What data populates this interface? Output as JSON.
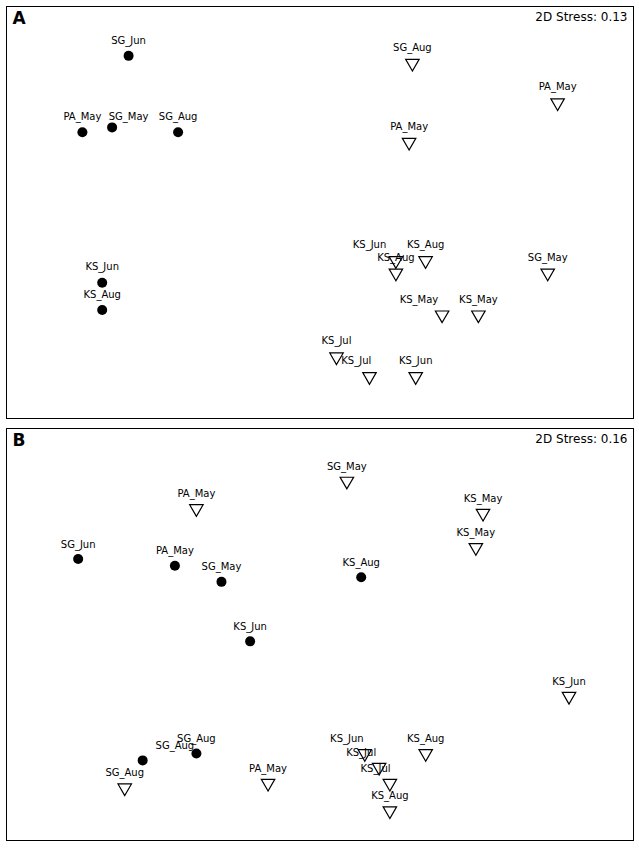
{
  "chart_data": [
    {
      "type": "scatter",
      "title": "A",
      "annotation": "2D Stress: 0.13",
      "xlim": [
        -1.05,
        0.85
      ],
      "ylim": [
        -0.72,
        0.95
      ],
      "tick_labels": false,
      "grid": false,
      "series": [
        {
          "marker": "circle",
          "color": "#000000",
          "x": [
            -0.68,
            -0.82,
            -0.73,
            -0.53,
            -0.76,
            -0.76
          ],
          "y": [
            0.75,
            0.44,
            0.46,
            0.44,
            -0.17,
            -0.28
          ],
          "labels": [
            "SG_Jun",
            "PA_May",
            "SG_May",
            "SG_Aug",
            "KS_Jun",
            "KS_Aug"
          ],
          "label_x": [
            -0.68,
            -0.82,
            -0.68,
            -0.53,
            -0.76,
            -0.76
          ],
          "label_y": [
            0.8,
            0.49,
            0.49,
            0.49,
            -0.12,
            -0.23
          ]
        },
        {
          "marker": "triangle-down-open",
          "color": "#000000",
          "x": [
            0.18,
            0.62,
            0.17,
            0.13,
            0.22,
            0.13,
            0.59,
            0.27,
            0.38,
            -0.05,
            0.05,
            0.19
          ],
          "y": [
            0.72,
            0.56,
            0.4,
            -0.08,
            -0.08,
            -0.13,
            -0.13,
            -0.3,
            -0.3,
            -0.47,
            -0.55,
            -0.55
          ],
          "labels": [
            "SG_Aug",
            "PA_May",
            "PA_May",
            "KS_Jun",
            "KS_Aug",
            "KS_Aug",
            "SG_May",
            "KS_May",
            "KS_May",
            "KS_Jul",
            "KS_Jul",
            "KS_Jun"
          ],
          "label_x": [
            0.18,
            0.62,
            0.17,
            0.05,
            0.22,
            0.13,
            0.59,
            0.2,
            0.38,
            -0.05,
            0.01,
            0.19
          ],
          "label_y": [
            0.77,
            0.61,
            0.45,
            -0.03,
            -0.03,
            -0.08,
            -0.08,
            -0.25,
            -0.25,
            -0.42,
            -0.5,
            -0.5
          ]
        }
      ]
    },
    {
      "type": "scatter",
      "title": "B",
      "annotation": "2D Stress: 0.16",
      "xlim": [
        -0.85,
        0.9
      ],
      "ylim": [
        -0.85,
        0.95
      ],
      "tick_labels": false,
      "grid": false,
      "series": [
        {
          "marker": "circle",
          "color": "#000000",
          "x": [
            -0.65,
            -0.38,
            -0.25,
            0.14,
            -0.17,
            -0.47,
            -0.32
          ],
          "y": [
            0.38,
            0.35,
            0.28,
            0.3,
            0.02,
            -0.5,
            -0.47
          ],
          "labels": [
            "SG_Jun",
            "PA_May",
            "SG_May",
            "KS_Aug",
            "KS_Jun",
            "SG_Aug",
            "SG_Aug"
          ],
          "label_x": [
            -0.65,
            -0.38,
            -0.25,
            0.14,
            -0.17,
            -0.38,
            -0.32
          ],
          "label_y": [
            0.43,
            0.4,
            0.33,
            0.35,
            0.07,
            -0.45,
            -0.42
          ]
        },
        {
          "marker": "triangle-down-open",
          "color": "#000000",
          "x": [
            0.1,
            -0.32,
            0.48,
            0.46,
            0.72,
            0.15,
            0.32,
            -0.52,
            -0.12,
            0.19,
            0.22,
            0.22
          ],
          "y": [
            0.72,
            0.6,
            0.58,
            0.43,
            -0.22,
            -0.47,
            -0.47,
            -0.62,
            -0.6,
            -0.53,
            -0.6,
            -0.72
          ],
          "labels": [
            "SG_May",
            "PA_May",
            "KS_May",
            "KS_May",
            "KS_Jun",
            "KS_Jun",
            "KS_Aug",
            "SG_Aug",
            "PA_May",
            "KS_Jul",
            "KS_Jul",
            "KS_Aug"
          ],
          "label_x": [
            0.1,
            -0.32,
            0.48,
            0.46,
            0.72,
            0.1,
            0.32,
            -0.52,
            -0.12,
            0.14,
            0.18,
            0.22
          ],
          "label_y": [
            0.77,
            0.65,
            0.63,
            0.48,
            -0.17,
            -0.42,
            -0.42,
            -0.57,
            -0.55,
            -0.48,
            -0.55,
            -0.67
          ]
        }
      ]
    }
  ]
}
